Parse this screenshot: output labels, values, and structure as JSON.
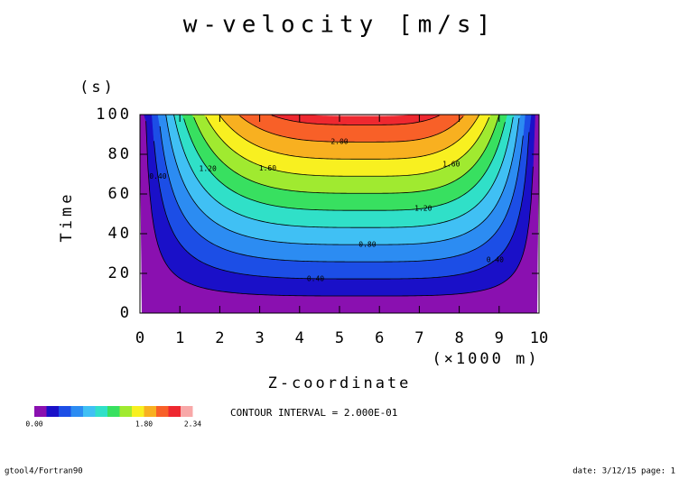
{
  "chart_data": {
    "type": "contour",
    "title": "w-velocity [m/s]",
    "x_label": "Z-coordinate",
    "x_unit": "(×1000 m)",
    "y_label": "Time",
    "y_unit": "(s)",
    "xlim": [
      0,
      10
    ],
    "xticks": [
      0,
      1,
      2,
      3,
      4,
      5,
      6,
      7,
      8,
      9,
      10
    ],
    "ylim": [
      0,
      100
    ],
    "yticks": [
      0,
      20,
      40,
      60,
      80,
      100
    ],
    "levels": [
      0,
      0.2,
      0.4,
      0.6,
      0.8,
      1.0,
      1.2,
      1.4,
      1.6,
      1.8,
      2.0,
      2.2
    ],
    "colors": [
      "#8a10b0",
      "#1a10c8",
      "#1c4ee6",
      "#2c8cf2",
      "#40c0f4",
      "#30e0c8",
      "#38e060",
      "#a0ea30",
      "#f8f020",
      "#f8b020",
      "#f86028",
      "#ee2830"
    ],
    "top_color": "#f8a8a8",
    "colorbar_range": [
      0,
      2.34
    ],
    "contour_labels": [
      {
        "value": 0.4,
        "label": "0.40"
      },
      {
        "value": 0.8,
        "label": "0.80"
      },
      {
        "value": 1.2,
        "label": "1.20"
      },
      {
        "value": 1.6,
        "label": "1.60"
      },
      {
        "value": 2.0,
        "label": "2.00"
      }
    ],
    "colorbar_ticks": [
      {
        "value": 0,
        "label": "0.00"
      },
      {
        "value": 1.8,
        "label": "1.80"
      },
      {
        "value": 2.34,
        "label": "2.34"
      }
    ],
    "annotation": "CONTOUR INTERVAL = 2.000E-01",
    "footer_left": "gtool4/Fortran90",
    "footer_right": "date: 3/12/15 page: 1"
  }
}
